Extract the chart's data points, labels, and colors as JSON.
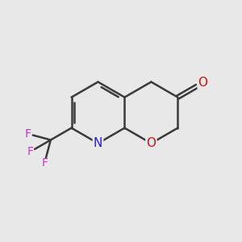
{
  "bg_color": "#e8e8e8",
  "bond_color": "#3a3a3a",
  "N_color": "#2222cc",
  "O_color": "#cc1111",
  "F_color": "#cc33cc",
  "bond_width": 1.8,
  "font_size_heteroatom": 11,
  "font_size_F": 10,
  "figsize": [
    3.0,
    3.0
  ],
  "dpi": 100,
  "xlim": [
    0,
    10
  ],
  "ylim": [
    0,
    10
  ]
}
